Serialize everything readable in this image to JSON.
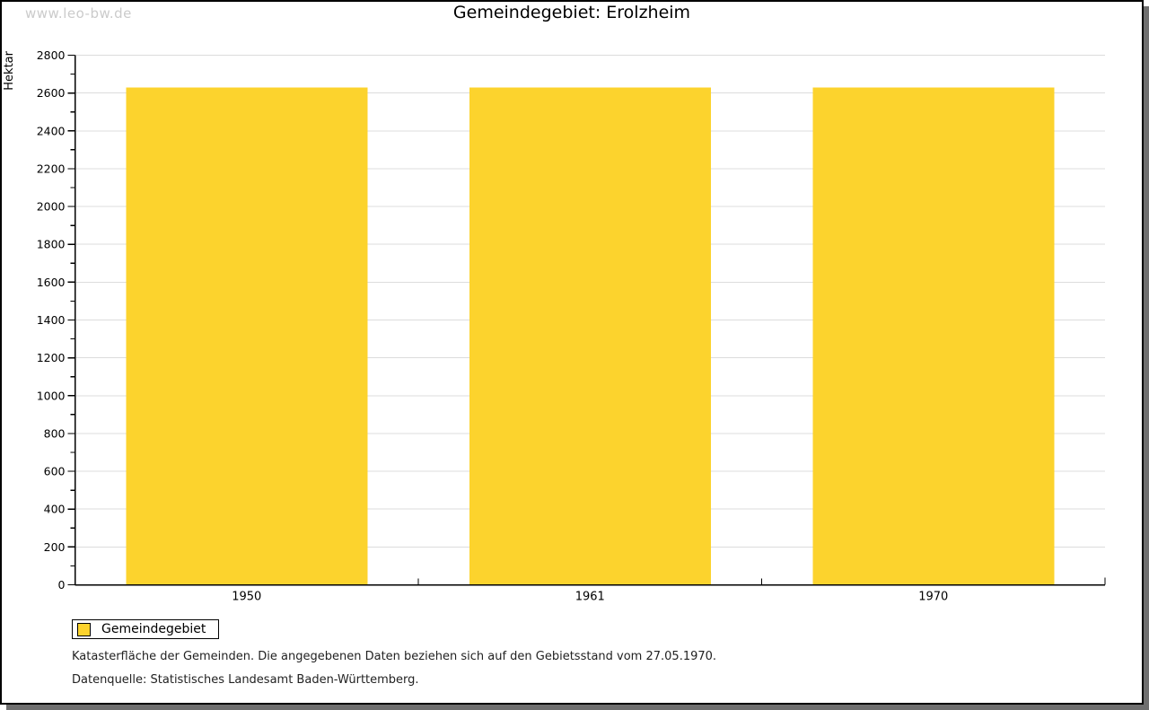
{
  "watermark": "www.leo-bw.de",
  "chart_data": {
    "type": "bar",
    "title": "Gemeindegebiet: Erolzheim",
    "categories": [
      "1950",
      "1961",
      "1970"
    ],
    "values": [
      2630,
      2630,
      2630
    ],
    "xlabel": "",
    "ylabel": "Hektar",
    "ylim": [
      0,
      2800
    ],
    "y_major_step": 200,
    "y_minor_step": 100,
    "grid": true,
    "grid_color": "#DCDCDC",
    "bar_color": "#FCD32D",
    "axis_color": "#000000",
    "legend_position": "bottom-left",
    "legend": [
      {
        "label": "Gemeindegebiet",
        "color": "#FCD32D"
      }
    ]
  },
  "footnotes": {
    "line1": "Katasterfläche der Gemeinden. Die angegebenen Daten beziehen sich auf den Gebietsstand vom 27.05.1970.",
    "line2": "Datenquelle: Statistisches Landesamt Baden-Württemberg."
  }
}
